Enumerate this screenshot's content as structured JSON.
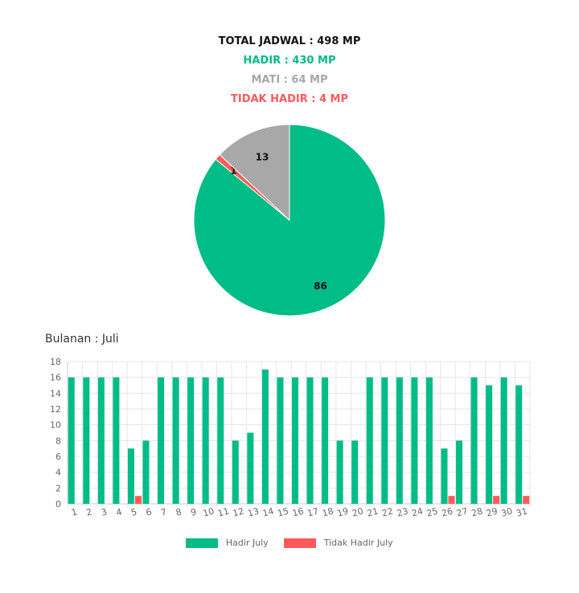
{
  "summary": {
    "total": "TOTAL JADWAL : 498 MP",
    "hadir": "HADIR : 430 MP",
    "mati": "MATI : 64 MP",
    "tidak_hadir": "TIDAK HADIR : 4 MP"
  },
  "colors": {
    "total": "#111111",
    "hadir": "#00BC87",
    "mati": "#A8A8A8",
    "tidak_hadir": "#FF5A5A"
  },
  "section_title": "Bulanan : Juli",
  "legend": {
    "hadir": "Hadir July",
    "tidak_hadir": "Tidak Hadir July"
  },
  "chart_data": [
    {
      "type": "pie",
      "slices": [
        {
          "label": "86",
          "value": 86,
          "color": "#00BC87"
        },
        {
          "label": "1",
          "value": 1,
          "color": "#FF5A5A"
        },
        {
          "label": "13",
          "value": 13,
          "color": "#A8A8A8"
        }
      ]
    },
    {
      "type": "bar",
      "categories": [
        "1",
        "2",
        "3",
        "4",
        "5",
        "6",
        "7",
        "8",
        "9",
        "10",
        "11",
        "12",
        "13",
        "14",
        "15",
        "16",
        "17",
        "18",
        "19",
        "20",
        "21",
        "22",
        "23",
        "24",
        "25",
        "26",
        "27",
        "28",
        "29",
        "30",
        "31"
      ],
      "series": [
        {
          "name": "Hadir July",
          "color": "#00BC87",
          "values": [
            16,
            16,
            16,
            16,
            7,
            8,
            16,
            16,
            16,
            16,
            16,
            8,
            9,
            17,
            16,
            16,
            16,
            16,
            8,
            8,
            16,
            16,
            16,
            16,
            16,
            7,
            8,
            16,
            15,
            16,
            15
          ]
        },
        {
          "name": "Tidak Hadir July",
          "color": "#FF5A5A",
          "values": [
            0,
            0,
            0,
            0,
            1,
            0,
            0,
            0,
            0,
            0,
            0,
            0,
            0,
            0,
            0,
            0,
            0,
            0,
            0,
            0,
            0,
            0,
            0,
            0,
            0,
            1,
            0,
            0,
            1,
            0,
            1
          ]
        }
      ],
      "ylim": [
        0,
        18
      ],
      "yticks": [
        0,
        2,
        4,
        6,
        8,
        10,
        12,
        14,
        16,
        18
      ],
      "grid": true,
      "legend_position": "bottom"
    }
  ]
}
